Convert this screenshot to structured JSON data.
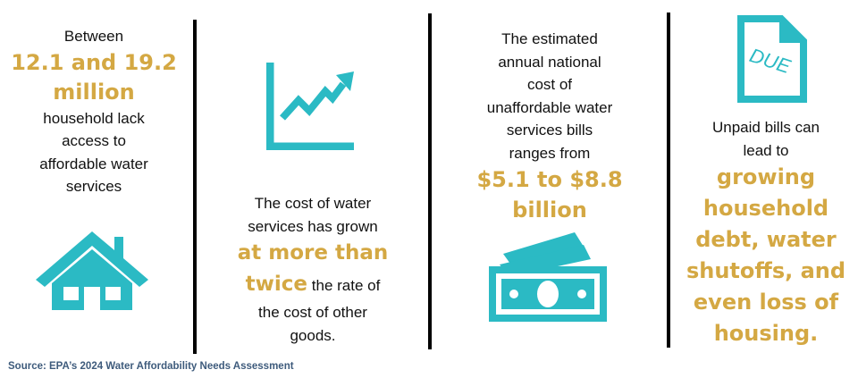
{
  "colors": {
    "accent_teal": "#2bbac4",
    "highlight_gold": "#d4a843",
    "source_text": "#3e5b7c"
  },
  "panels": [
    {
      "icon": "house-icon",
      "lines": {
        "l1": "Between",
        "h1": "12.1 and 19.2",
        "h2": "million",
        "l2": "household lack",
        "l3": "access to",
        "l4": "affordable water",
        "l5": "services"
      }
    },
    {
      "icon": "rising-chart-icon",
      "lines": {
        "l1": "The cost of water",
        "l2": "services has grown",
        "h1": "at more than",
        "h2": "twice",
        "l3": "the rate of",
        "l4": "the cost of other",
        "l5": "goods."
      }
    },
    {
      "icon": "money-bills-icon",
      "lines": {
        "l1": "The estimated",
        "l2": "annual national",
        "l3": "cost of",
        "l4": "unaffordable water",
        "l5": "services bills",
        "l6": "ranges from",
        "h1": "$5.1 to $8.8",
        "h2": "billion"
      }
    },
    {
      "icon": "due-document-icon",
      "icon_text": "DUE",
      "lines": {
        "l1": "Unpaid bills can",
        "l2": "lead to",
        "h1": "growing",
        "h2": "household",
        "h3": "debt, water",
        "h4": "shutoffs, and",
        "h5": "even loss of",
        "h6": "housing."
      }
    }
  ],
  "source": "Source: EPA’s 2024 Water Affordability Needs Assessment"
}
